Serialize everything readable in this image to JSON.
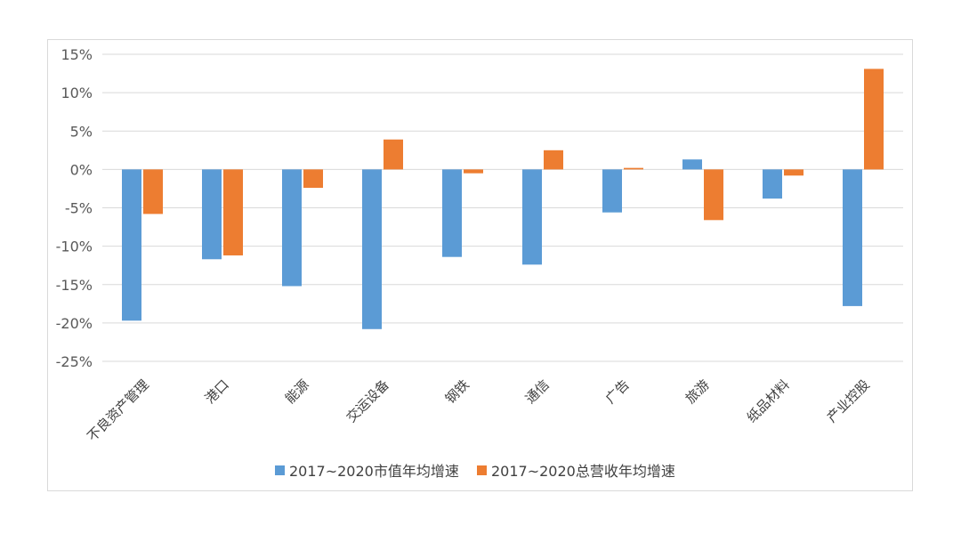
{
  "chart_data": {
    "type": "bar",
    "categories": [
      "不良资产管理",
      "港口",
      "能源",
      "交运设备",
      "钢铁",
      "通信",
      "广告",
      "旅游",
      "纸品材料",
      "产业控股"
    ],
    "series": [
      {
        "name": "2017~2020市值年均增速",
        "color": "#5b9bd5",
        "values": [
          -19.7,
          -11.7,
          -15.2,
          -20.8,
          -11.4,
          -12.4,
          -5.6,
          1.3,
          -3.8,
          -17.8
        ]
      },
      {
        "name": "2017~2020总营收年均增速",
        "color": "#ed7d31",
        "values": [
          -5.8,
          -11.2,
          -2.4,
          3.9,
          -0.5,
          2.5,
          0.2,
          -6.6,
          -0.8,
          13.1
        ]
      }
    ],
    "y_ticks": [
      "15%",
      "10%",
      "5%",
      "0%",
      "-5%",
      "-10%",
      "-15%",
      "-20%",
      "-25%"
    ],
    "ylim": [
      -25,
      15
    ],
    "grid": true,
    "legend_position": "bottom",
    "title": "",
    "xlabel": "",
    "ylabel": ""
  },
  "colors": {
    "gridline": "#d9d9d9",
    "frame_border": "#d9d9d9"
  }
}
